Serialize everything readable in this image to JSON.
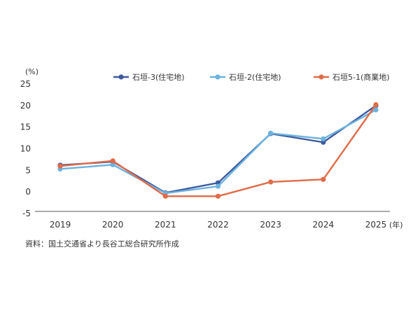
{
  "chart_data": {
    "type": "line",
    "y_unit": "(%)",
    "x_unit": "(年)",
    "ylim": [
      -5,
      25
    ],
    "yticks": [
      25,
      20,
      15,
      10,
      5,
      0,
      -5
    ],
    "categories": [
      "2019",
      "2020",
      "2021",
      "2022",
      "2023",
      "2024",
      "2025"
    ],
    "grid": false,
    "legend_position": "top-right",
    "series": [
      {
        "name": "石垣-3(住宅地)",
        "color": "#3d5a9e",
        "values": [
          6.2,
          7.0,
          -0.2,
          2.1,
          13.5,
          11.5,
          20.0
        ]
      },
      {
        "name": "石垣-2(住宅地)",
        "color": "#6cb2de",
        "values": [
          5.3,
          6.3,
          -0.3,
          1.3,
          13.6,
          12.3,
          19.0
        ]
      },
      {
        "name": "石垣5-1(商業地)",
        "color": "#e06b47",
        "values": [
          6.0,
          7.2,
          -1.0,
          -1.0,
          2.3,
          2.9,
          20.2
        ]
      }
    ],
    "source": "資料：国土交通省より長谷工総合研究所作成"
  }
}
